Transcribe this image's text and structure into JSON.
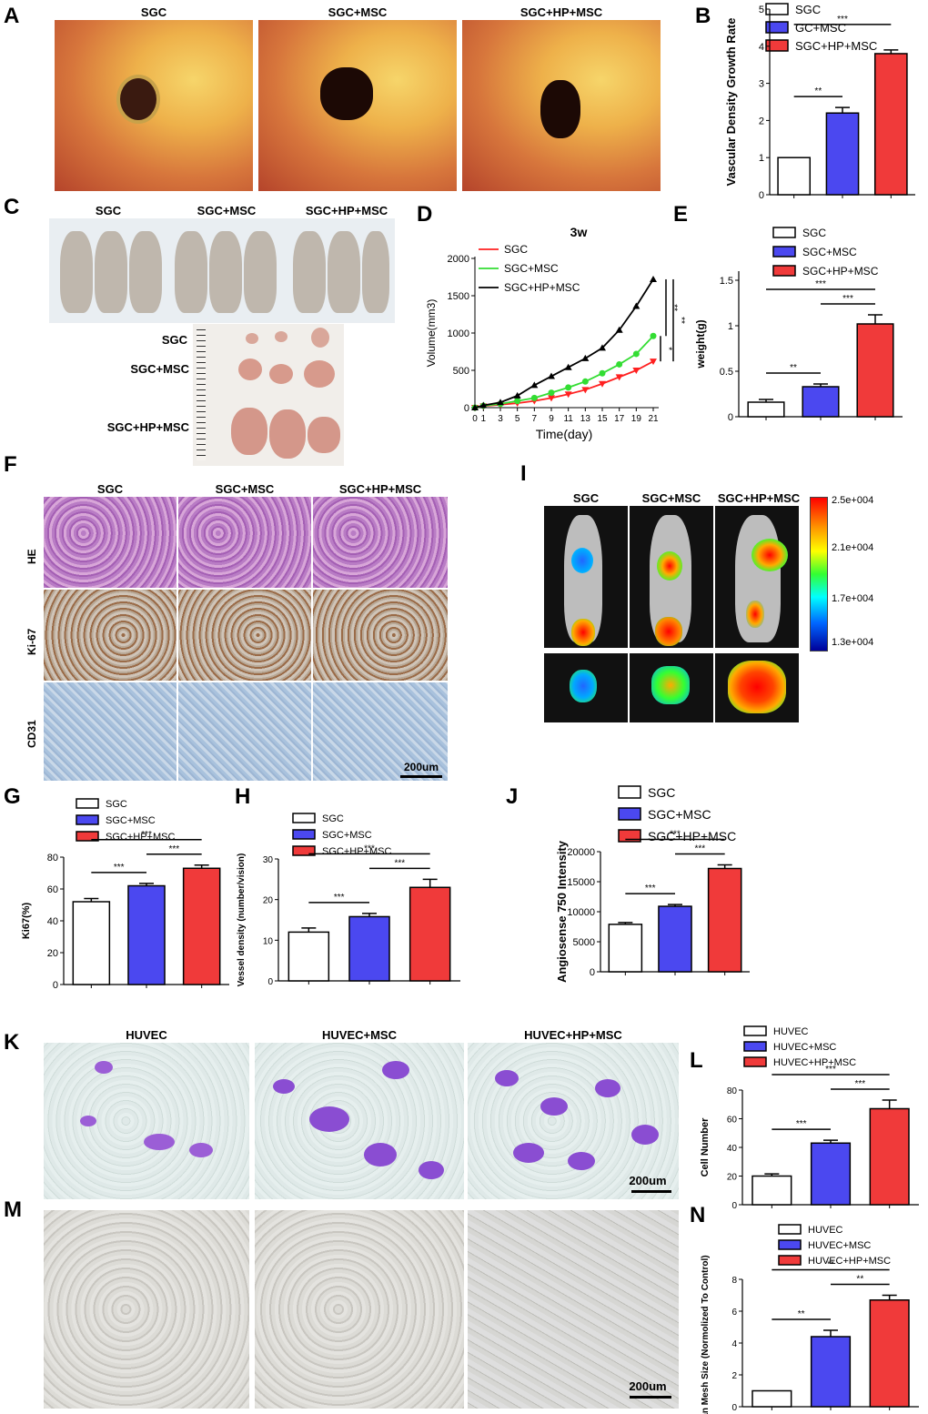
{
  "panel_letters": [
    "A",
    "B",
    "C",
    "D",
    "E",
    "F",
    "G",
    "H",
    "I",
    "J",
    "K",
    "L",
    "M",
    "N"
  ],
  "panelA": {
    "headers": [
      "SGC",
      "SGC+MSC",
      "SGC+HP+MSC"
    ]
  },
  "panelC": {
    "headers": [
      "SGC",
      "SGC+MSC",
      "SGC+HP+MSC"
    ],
    "row_labels": [
      "SGC",
      "SGC+MSC",
      "SGC+HP+MSC"
    ]
  },
  "panelF": {
    "headers": [
      "SGC",
      "SGC+MSC",
      "SGC+HP+MSC"
    ],
    "row_labels": [
      "HE",
      "Ki-67",
      "CD31"
    ],
    "scale": "200um"
  },
  "panelI": {
    "headers": [
      "SGC",
      "SGC+MSC",
      "SGC+HP+MSC"
    ],
    "colorbar": [
      "2.5e+004",
      "2.1e+004",
      "1.7e+004",
      "1.3e+004"
    ]
  },
  "panelK": {
    "headers": [
      "HUVEC",
      "HUVEC+MSC",
      "HUVEC+HP+MSC"
    ],
    "scale": "200um"
  },
  "panelM": {
    "scale": "200um"
  },
  "colors": {
    "white": "#ffffff",
    "blue": "#4b48f0",
    "red": "#f03a3a"
  },
  "chart_data": [
    {
      "id": "B",
      "type": "bar",
      "categories": [
        "SGC",
        "GC+MSC",
        "SGC+HP+MSC"
      ],
      "values": [
        1.0,
        2.2,
        3.8
      ],
      "errors": [
        0,
        0.15,
        0.1
      ],
      "ylabel": "Vascular Density Growth Rate",
      "ylim": [
        0,
        5
      ],
      "yticks": [
        0,
        1,
        2,
        3,
        4,
        5
      ],
      "sig": [
        {
          "from": 0,
          "to": 1,
          "label": "**"
        },
        {
          "from": 0,
          "to": 2,
          "label": "***"
        }
      ]
    },
    {
      "id": "D",
      "type": "line",
      "title": "3w",
      "xlabel": "Time(day)",
      "ylabel": "Volume(mm3)",
      "x": [
        0,
        1,
        3,
        5,
        7,
        9,
        11,
        13,
        15,
        17,
        19,
        21
      ],
      "series": [
        {
          "name": "SGC",
          "values": [
            0,
            20,
            40,
            60,
            90,
            130,
            180,
            240,
            320,
            410,
            500,
            620
          ]
        },
        {
          "name": "SGC+MSC",
          "values": [
            0,
            25,
            50,
            90,
            130,
            200,
            270,
            350,
            460,
            580,
            720,
            960
          ]
        },
        {
          "name": "SGC+HP+MSC",
          "values": [
            0,
            30,
            70,
            160,
            300,
            420,
            540,
            660,
            800,
            1040,
            1360,
            1720
          ]
        }
      ],
      "ylim": [
        0,
        2000
      ],
      "yticks": [
        0,
        500,
        1000,
        1500,
        2000
      ],
      "sig": [
        "*",
        "**",
        "**"
      ]
    },
    {
      "id": "E",
      "type": "bar",
      "categories": [
        "SGC",
        "SGC+MSC",
        "SGC+HP+MSC"
      ],
      "values": [
        0.16,
        0.33,
        1.02
      ],
      "errors": [
        0.03,
        0.03,
        0.1
      ],
      "ylabel": "weight(g)",
      "ylim": [
        0,
        1.6
      ],
      "yticks": [
        0.0,
        0.5,
        1.0,
        1.5
      ],
      "sig": [
        {
          "from": 0,
          "to": 1,
          "label": "**"
        },
        {
          "from": 1,
          "to": 2,
          "label": "***"
        },
        {
          "from": 0,
          "to": 2,
          "label": "***"
        }
      ]
    },
    {
      "id": "G",
      "type": "bar",
      "categories": [
        "SGC",
        "SGC+MSC",
        "SGC+HP+MSC"
      ],
      "values": [
        52,
        62,
        73
      ],
      "errors": [
        2,
        1.5,
        2
      ],
      "ylabel": "Ki67(%)",
      "ylim": [
        0,
        80
      ],
      "yticks": [
        0,
        20,
        40,
        60,
        80
      ],
      "sig": [
        {
          "from": 0,
          "to": 1,
          "label": "***"
        },
        {
          "from": 1,
          "to": 2,
          "label": "***"
        },
        {
          "from": 0,
          "to": 2,
          "label": "***"
        }
      ]
    },
    {
      "id": "H",
      "type": "bar",
      "categories": [
        "SGC",
        "SGC+MSC",
        "SGC+HP+MSC"
      ],
      "values": [
        12,
        15.8,
        23
      ],
      "errors": [
        1,
        0.8,
        2
      ],
      "ylabel": "Vessel density (number/vision)",
      "ylim": [
        0,
        30
      ],
      "yticks": [
        0,
        10,
        20,
        30
      ],
      "sig": [
        {
          "from": 0,
          "to": 1,
          "label": "***"
        },
        {
          "from": 1,
          "to": 2,
          "label": "***"
        },
        {
          "from": 0,
          "to": 2,
          "label": "***"
        }
      ]
    },
    {
      "id": "J",
      "type": "bar",
      "categories": [
        "SGC",
        "SGC+MSC",
        "SGC+HP+MSC"
      ],
      "values": [
        7900,
        10900,
        17200
      ],
      "errors": [
        300,
        300,
        600
      ],
      "ylabel": "Angiosense 750  Intensity",
      "ylim": [
        0,
        20000
      ],
      "yticks": [
        0,
        5000,
        10000,
        15000,
        20000
      ],
      "sig": [
        {
          "from": 0,
          "to": 1,
          "label": "***"
        },
        {
          "from": 1,
          "to": 2,
          "label": "***"
        },
        {
          "from": 0,
          "to": 2,
          "label": "***"
        }
      ]
    },
    {
      "id": "L",
      "type": "bar",
      "categories": [
        "HUVEC",
        "HUVEC+MSC",
        "HUVEC+HP+MSC"
      ],
      "values": [
        20,
        43,
        67
      ],
      "errors": [
        1.5,
        2,
        6
      ],
      "ylabel": "Cell Number",
      "ylim": [
        0,
        80
      ],
      "yticks": [
        0,
        20,
        40,
        60,
        80
      ],
      "sig": [
        {
          "from": 0,
          "to": 1,
          "label": "***"
        },
        {
          "from": 1,
          "to": 2,
          "label": "***"
        },
        {
          "from": 0,
          "to": 2,
          "label": "***"
        }
      ]
    },
    {
      "id": "N",
      "type": "bar",
      "categories": [
        "HUVEC",
        "HUVEC+MSC",
        "HUVEC+HP+MSC"
      ],
      "values": [
        1.0,
        4.4,
        6.7
      ],
      "errors": [
        0,
        0.4,
        0.3
      ],
      "ylabel": "Mean Mesh Size (Normolized To Control)",
      "ylim": [
        0,
        8
      ],
      "yticks": [
        0,
        2,
        4,
        6,
        8
      ],
      "sig": [
        {
          "from": 0,
          "to": 1,
          "label": "**"
        },
        {
          "from": 1,
          "to": 2,
          "label": "**"
        },
        {
          "from": 0,
          "to": 2,
          "label": "**"
        }
      ]
    }
  ]
}
